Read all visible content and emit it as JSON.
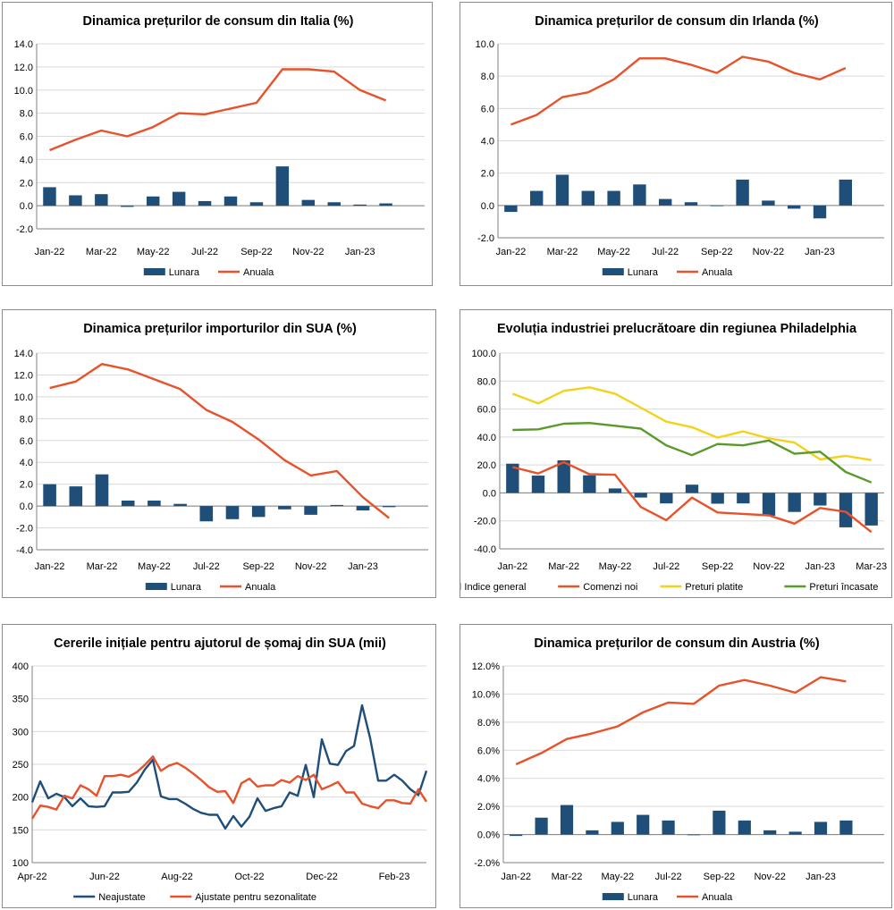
{
  "colors": {
    "bar": "#1f4e79",
    "line_orange": "#e8522a",
    "line_yellow": "#f2d21b",
    "line_green": "#5a9a2a",
    "grid": "#d9d9d9",
    "axis": "#808080"
  },
  "chart_data": [
    {
      "type": "bar+line",
      "title": "Dinamica prețurilor de consum din Italia (%)",
      "ylim": [
        -2,
        14
      ],
      "ystep": 2,
      "ydecimals": 1,
      "ysuffix": "",
      "n": 15,
      "categories": [
        "Jan-22",
        "Feb-22",
        "Mar-22",
        "Apr-22",
        "May-22",
        "Jun-22",
        "Jul-22",
        "Aug-22",
        "Sep-22",
        "Oct-22",
        "Nov-22",
        "Dec-22",
        "Jan-23",
        "Feb-23",
        "Mar-23"
      ],
      "xlabels": [
        "Jan-22",
        "Mar-22",
        "May-22",
        "Jul-22",
        "Sep-22",
        "Nov-22",
        "Jan-23"
      ],
      "xlabel_step": 2,
      "bars": [
        {
          "name": "Lunara",
          "values": [
            1.6,
            0.9,
            1.0,
            -0.1,
            0.8,
            1.2,
            0.4,
            0.8,
            0.3,
            3.4,
            0.5,
            0.3,
            0.1,
            0.2,
            null
          ]
        }
      ],
      "lines": [
        {
          "name": "Anuala",
          "color": "line_orange",
          "values": [
            4.8,
            5.7,
            6.5,
            6.0,
            6.8,
            8.0,
            7.9,
            8.4,
            8.9,
            11.8,
            11.8,
            11.6,
            10.0,
            9.1,
            null
          ]
        }
      ],
      "legend": [
        "Lunara",
        "Anuala"
      ]
    },
    {
      "type": "bar+line",
      "title": "Dinamica prețurilor de consum din Irlanda (%)",
      "ylim": [
        -2,
        10
      ],
      "ystep": 2,
      "ydecimals": 1,
      "ysuffix": "",
      "n": 15,
      "categories": [
        "Jan-22",
        "Feb-22",
        "Mar-22",
        "Apr-22",
        "May-22",
        "Jun-22",
        "Jul-22",
        "Aug-22",
        "Sep-22",
        "Oct-22",
        "Nov-22",
        "Dec-22",
        "Jan-23",
        "Feb-23",
        "Mar-23"
      ],
      "xlabels": [
        "Jan-22",
        "Mar-22",
        "May-22",
        "Jul-22",
        "Sep-22",
        "Nov-22",
        "Jan-23"
      ],
      "xlabel_step": 2,
      "bars": [
        {
          "name": "Lunara",
          "values": [
            -0.4,
            0.9,
            1.9,
            0.9,
            0.9,
            1.3,
            0.4,
            0.2,
            0.0,
            1.6,
            0.3,
            -0.2,
            -0.8,
            1.6,
            null
          ]
        }
      ],
      "lines": [
        {
          "name": "Anuala",
          "color": "line_orange",
          "values": [
            5.0,
            5.6,
            6.7,
            7.0,
            7.8,
            9.1,
            9.1,
            8.7,
            8.2,
            9.2,
            8.9,
            8.2,
            7.8,
            8.5,
            null
          ]
        }
      ],
      "legend": [
        "Lunara",
        "Anuala"
      ]
    },
    {
      "type": "bar+line",
      "title": "Dinamica prețurilor importurilor din SUA (%)",
      "ylim": [
        -4,
        14
      ],
      "ystep": 2,
      "ydecimals": 1,
      "ysuffix": "",
      "n": 15,
      "categories": [
        "Jan-22",
        "Feb-22",
        "Mar-22",
        "Apr-22",
        "May-22",
        "Jun-22",
        "Jul-22",
        "Aug-22",
        "Sep-22",
        "Oct-22",
        "Nov-22",
        "Dec-22",
        "Jan-23",
        "Feb-23",
        "Mar-23"
      ],
      "xlabels": [
        "Jan-22",
        "Mar-22",
        "May-22",
        "Jul-22",
        "Sep-22",
        "Nov-22",
        "Jan-23"
      ],
      "xlabel_step": 2,
      "bars": [
        {
          "name": "Lunara",
          "values": [
            2.0,
            1.8,
            2.9,
            0.5,
            0.5,
            0.2,
            -1.4,
            -1.2,
            -1.0,
            -0.3,
            -0.8,
            0.1,
            -0.4,
            -0.1,
            null
          ]
        }
      ],
      "lines": [
        {
          "name": "Anuala",
          "color": "line_orange",
          "values": [
            10.8,
            11.4,
            13.0,
            12.5,
            11.6,
            10.7,
            8.8,
            7.7,
            6.1,
            4.2,
            2.8,
            3.2,
            0.8,
            -1.1,
            null
          ]
        }
      ],
      "legend": [
        "Lunara",
        "Anuala"
      ]
    },
    {
      "type": "bar+line",
      "title": "Evoluția industriei prelucrătoare din regiunea Philadelphia",
      "ylim": [
        -40,
        100
      ],
      "ystep": 20,
      "ydecimals": 1,
      "ysuffix": "",
      "n": 15,
      "categories": [
        "Jan-22",
        "Feb-22",
        "Mar-22",
        "Apr-22",
        "May-22",
        "Jun-22",
        "Jul-22",
        "Aug-22",
        "Sep-22",
        "Oct-22",
        "Nov-22",
        "Dec-22",
        "Jan-23",
        "Feb-23",
        "Mar-23"
      ],
      "xlabels": [
        "Jan-22",
        "Mar-22",
        "May-22",
        "Jul-22",
        "Sep-22",
        "Nov-22",
        "Jan-23",
        "Mar-23"
      ],
      "xlabel_step": 2,
      "bars": [
        {
          "name": "Indice general",
          "values": [
            20.9,
            12.4,
            23.3,
            12.6,
            3.2,
            -3.3,
            -7.5,
            5.9,
            -7.7,
            -7.5,
            -16.3,
            -13.6,
            -9.0,
            -24.6,
            -23.3
          ]
        }
      ],
      "lines": [
        {
          "name": "Comenzi noi",
          "color": "line_orange",
          "values": [
            18.5,
            13.9,
            22.0,
            13.4,
            13.0,
            -10.0,
            -19.5,
            -3.4,
            -14.0,
            -15.0,
            -16.0,
            -22.0,
            -10.8,
            -13.5,
            -28.0
          ]
        },
        {
          "name": "Preturi platite",
          "color": "line_yellow",
          "values": [
            71.0,
            64.0,
            73.0,
            75.5,
            71.0,
            61.0,
            51.0,
            47.0,
            39.5,
            44.0,
            39.0,
            36.0,
            24.0,
            26.5,
            23.5
          ]
        },
        {
          "name": "Preturi încasate",
          "color": "line_green",
          "values": [
            45.0,
            45.5,
            49.5,
            50.0,
            48.0,
            46.0,
            34.0,
            27.0,
            35.0,
            34.0,
            37.5,
            28.0,
            29.5,
            15.0,
            7.5
          ]
        }
      ],
      "legend": [
        "Indice general",
        "Comenzi noi",
        "Preturi platite",
        "Preturi încasate"
      ]
    },
    {
      "type": "line",
      "title": "Cererile inițiale pentru ajutorul de șomaj din SUA (mii)",
      "ylim": [
        100,
        400
      ],
      "ystep": 50,
      "ydecimals": 0,
      "ysuffix": "",
      "n": 50,
      "xlabels": [
        "Apr-22",
        "Jun-22",
        "Aug-22",
        "Oct-22",
        "Dec-22",
        "Feb-23"
      ],
      "xlabel_positions": [
        0,
        9,
        18,
        27,
        36,
        45
      ],
      "lines": [
        {
          "name": "Neajustate",
          "color": "bar",
          "values": [
            192,
            224,
            198,
            205,
            200,
            186,
            198,
            186,
            185,
            186,
            207,
            207,
            208,
            222,
            242,
            257,
            201,
            197,
            197,
            190,
            182,
            176,
            173,
            173,
            152,
            171,
            155,
            170,
            198,
            179,
            183,
            186,
            207,
            202,
            249,
            200,
            288,
            251,
            249,
            270,
            278,
            340,
            290,
            225,
            225,
            234,
            225,
            212,
            203,
            240
          ]
        },
        {
          "name": "Ajustate pentru sezonalitate",
          "color": "line_orange",
          "values": [
            167,
            187,
            185,
            181,
            202,
            198,
            218,
            212,
            202,
            232,
            232,
            234,
            231,
            238,
            249,
            262,
            240,
            248,
            252,
            245,
            236,
            226,
            215,
            208,
            209,
            191,
            221,
            228,
            216,
            218,
            218,
            226,
            222,
            232,
            226,
            234,
            212,
            217,
            223,
            207,
            207,
            190,
            186,
            183,
            195,
            195,
            191,
            190,
            212,
            193
          ]
        }
      ],
      "legend": [
        "Neajustate",
        "Ajustate pentru sezonalitate"
      ]
    },
    {
      "type": "bar+line",
      "title": "Dinamica prețurilor de consum din Austria (%)",
      "ylim": [
        -2,
        12
      ],
      "ystep": 2,
      "ydecimals": 1,
      "ysuffix": "%",
      "n": 15,
      "categories": [
        "Jan-22",
        "Feb-22",
        "Mar-22",
        "Apr-22",
        "May-22",
        "Jun-22",
        "Jul-22",
        "Aug-22",
        "Sep-22",
        "Oct-22",
        "Nov-22",
        "Dec-22",
        "Jan-23",
        "Feb-23",
        "Mar-23"
      ],
      "xlabels": [
        "Jan-22",
        "Mar-22",
        "May-22",
        "Jul-22",
        "Sep-22",
        "Nov-22",
        "Jan-23"
      ],
      "xlabel_step": 2,
      "bars": [
        {
          "name": "Lunara",
          "values": [
            -0.1,
            1.2,
            2.1,
            0.3,
            0.9,
            1.4,
            1.0,
            0.0,
            1.7,
            1.0,
            0.3,
            0.2,
            0.9,
            1.0,
            null
          ]
        }
      ],
      "lines": [
        {
          "name": "Anuala",
          "color": "line_orange",
          "values": [
            5.0,
            5.8,
            6.8,
            7.2,
            7.7,
            8.7,
            9.4,
            9.3,
            10.6,
            11.0,
            10.6,
            10.1,
            11.2,
            10.9,
            null
          ]
        }
      ],
      "legend": [
        "Lunara",
        "Anuala"
      ]
    }
  ]
}
